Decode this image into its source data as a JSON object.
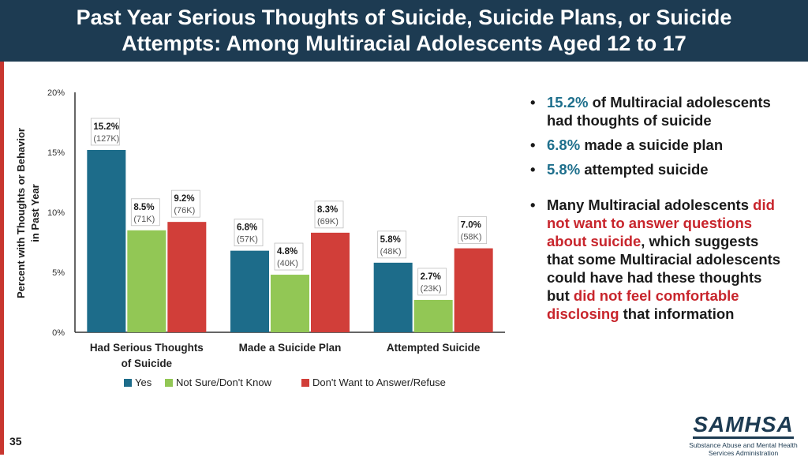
{
  "header": {
    "title_line1": "Past Year Serious Thoughts of Suicide, Suicide Plans, or Suicide",
    "title_line2": "Attempts: Among Multiracial Adolescents Aged 12 to 17"
  },
  "colors": {
    "header_bg": "#1d3b52",
    "accent_red": "#c8362f",
    "highlight_teal": "#1e6f8c",
    "highlight_red": "#c8252c"
  },
  "chart_data": {
    "type": "bar",
    "title": "",
    "ylabel_line1": "Percent with Thoughts or Behavior",
    "ylabel_line2": "in Past Year",
    "ylim": [
      0,
      20
    ],
    "yticks": [
      0,
      5,
      10,
      15,
      20
    ],
    "ytick_labels": [
      "0%",
      "5%",
      "10%",
      "15%",
      "20%"
    ],
    "categories": [
      [
        "Had Serious Thoughts",
        "of Suicide"
      ],
      [
        "Made a Suicide Plan"
      ],
      [
        "Attempted Suicide"
      ]
    ],
    "series": [
      {
        "name": "Yes",
        "color": "#1d6c8a",
        "values": [
          15.2,
          6.8,
          5.8
        ],
        "labels": [
          "15.2%",
          "6.8%",
          "5.8%"
        ],
        "counts": [
          "(127K)",
          "(57K)",
          "(48K)"
        ]
      },
      {
        "name": "Not Sure/Don't Know",
        "color": "#92c755",
        "values": [
          8.5,
          4.8,
          2.7
        ],
        "labels": [
          "8.5%",
          "4.8%",
          "2.7%"
        ],
        "counts": [
          "(71K)",
          "(40K)",
          "(23K)"
        ]
      },
      {
        "name": "Don't Want to Answer/Refuse",
        "color": "#d13e39",
        "values": [
          9.2,
          8.3,
          7.0
        ],
        "labels": [
          "9.2%",
          "8.3%",
          "7.0%"
        ],
        "counts": [
          "(76K)",
          "(69K)",
          "(58K)"
        ]
      }
    ],
    "legend_position": "bottom",
    "grid": false
  },
  "bullets": {
    "b1_value": "15.2%",
    "b1_text": "of Multiracial adolescents had thoughts of suicide",
    "b2_value": "6.8%",
    "b2_text": "made a suicide plan",
    "b3_value": "5.8%",
    "b3_text": "attempted suicide",
    "b4_part1": "Many Multiracial adolescents",
    "b4_red1": "did not want to answer questions about suicide",
    "b4_part2": ", which suggests that some Multiracial adolescents could have had these thoughts but",
    "b4_red2": "did not feel comfortable disclosing",
    "b4_part3": "that information"
  },
  "page_number": "35",
  "logo": {
    "word": "SAMHSA",
    "sub_line1": "Substance Abuse and Mental Health",
    "sub_line2": "Services Administration"
  }
}
